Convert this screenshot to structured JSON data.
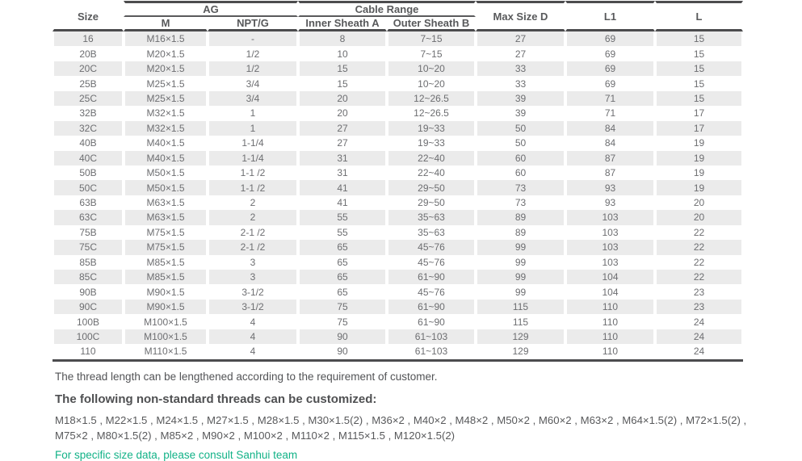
{
  "table": {
    "headers": {
      "size": "Size",
      "ag": "AG",
      "m": "M",
      "nptg": "NPT/G",
      "cable_range": "Cable Range",
      "inner_sheath_a": "Inner Sheath A",
      "outer_sheath_b": "Outer Sheath B",
      "max_size_d": "Max Size D",
      "l1": "L1",
      "l": "L"
    },
    "rows": [
      [
        "16",
        "M16×1.5",
        "-",
        "8",
        "7~15",
        "27",
        "69",
        "15"
      ],
      [
        "20B",
        "M20×1.5",
        "1/2",
        "10",
        "7~15",
        "27",
        "69",
        "15"
      ],
      [
        "20C",
        "M20×1.5",
        "1/2",
        "15",
        "10~20",
        "33",
        "69",
        "15"
      ],
      [
        "25B",
        "M25×1.5",
        "3/4",
        "15",
        "10~20",
        "33",
        "69",
        "15"
      ],
      [
        "25C",
        "M25×1.5",
        "3/4",
        "20",
        "12~26.5",
        "39",
        "71",
        "15"
      ],
      [
        "32B",
        "M32×1.5",
        "1",
        "20",
        "12~26.5",
        "39",
        "71",
        "17"
      ],
      [
        "32C",
        "M32×1.5",
        "1",
        "27",
        "19~33",
        "50",
        "84",
        "17"
      ],
      [
        "40B",
        "M40×1.5",
        "1-1/4",
        "27",
        "19~33",
        "50",
        "84",
        "19"
      ],
      [
        "40C",
        "M40×1.5",
        "1-1/4",
        "31",
        "22~40",
        "60",
        "87",
        "19"
      ],
      [
        "50B",
        "M50×1.5",
        "1-1 /2",
        "31",
        "22~40",
        "60",
        "87",
        "19"
      ],
      [
        "50C",
        "M50×1.5",
        "1-1 /2",
        "41",
        "29~50",
        "73",
        "93",
        "19"
      ],
      [
        "63B",
        "M63×1.5",
        "2",
        "41",
        "29~50",
        "73",
        "93",
        "20"
      ],
      [
        "63C",
        "M63×1.5",
        "2",
        "55",
        "35~63",
        "89",
        "103",
        "20"
      ],
      [
        "75B",
        "M75×1.5",
        "2-1 /2",
        "55",
        "35~63",
        "89",
        "103",
        "22"
      ],
      [
        "75C",
        "M75×1.5",
        "2-1 /2",
        "65",
        "45~76",
        "99",
        "103",
        "22"
      ],
      [
        "85B",
        "M85×1.5",
        "3",
        "65",
        "45~76",
        "99",
        "103",
        "22"
      ],
      [
        "85C",
        "M85×1.5",
        "3",
        "65",
        "61~90",
        "99",
        "104",
        "22"
      ],
      [
        "90B",
        "M90×1.5",
        "3-1/2",
        "65",
        "45~76",
        "99",
        "104",
        "23"
      ],
      [
        "90C",
        "M90×1.5",
        "3-1/2",
        "75",
        "61~90",
        "115",
        "110",
        "23"
      ],
      [
        "100B",
        "M100×1.5",
        "4",
        "75",
        "61~90",
        "115",
        "110",
        "24"
      ],
      [
        "100C",
        "M100×1.5",
        "4",
        "90",
        "61~103",
        "129",
        "110",
        "24"
      ],
      [
        "110",
        "M110×1.5",
        "4",
        "90",
        "61~103",
        "129",
        "110",
        "24"
      ]
    ]
  },
  "notes": {
    "thread_length": "The thread length can be lengthened according to the requirement of customer.",
    "customized_heading": "The following non-standard threads can be customized:",
    "threads_line1": "M18×1.5 , M22×1.5 , M24×1.5 , M27×1.5 , M28×1.5 , M30×1.5(2) , M36×2 , M40×2 , M48×2 , M50×2 , M60×2 , M63×2 , M64×1.5(2) , M72×1.5(2) ,",
    "threads_line2": "M75×2 , M80×1.5(2) , M85×2 , M90×2 , M100×2 , M110×2 , M115×1.5 , M120×1.5(2)",
    "consult": "For specific size data, please consult Sanhui team"
  },
  "colors": {
    "accent_green": "#12b287",
    "row_alt_gray": "#ebebeb",
    "border_dark": "#4c4c4e",
    "header_text": "#58595b",
    "body_text": "#6d6e71"
  }
}
